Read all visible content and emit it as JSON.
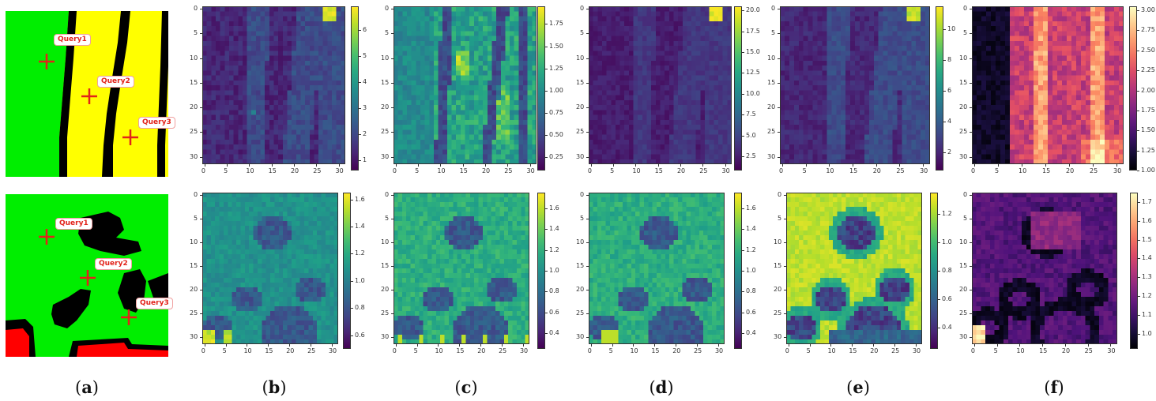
{
  "captions": [
    "a",
    "b",
    "c",
    "d",
    "e",
    "f"
  ],
  "query_labels": [
    "Query1",
    "Query2",
    "Query3"
  ],
  "colors": {
    "map_green": "#00ee00",
    "map_yellow": "#ffff00",
    "map_black": "#000000",
    "map_red": "#ff0000",
    "query_red": "#e2231a"
  },
  "chart_data": [
    {
      "type": "heatmap",
      "row": 1,
      "panel": "b",
      "colormap": "viridis",
      "xticks": [
        "0",
        "5",
        "10",
        "15",
        "20",
        "25",
        "30"
      ],
      "yticks": [
        "0",
        "5",
        "10",
        "15",
        "20",
        "25",
        "30"
      ],
      "colorbar_ticks": [
        "6",
        "5",
        "4",
        "3",
        "2",
        "1"
      ],
      "zlim": [
        0.6,
        6.9
      ]
    },
    {
      "type": "heatmap",
      "row": 1,
      "panel": "c",
      "colormap": "viridis",
      "xticks": [
        "0",
        "5",
        "10",
        "15",
        "20",
        "25",
        "30"
      ],
      "yticks": [
        "0",
        "5",
        "10",
        "15",
        "20",
        "25",
        "30"
      ],
      "colorbar_ticks": [
        "1.75",
        "1.50",
        "1.25",
        "1.00",
        "0.75",
        "0.50",
        "0.25"
      ],
      "zlim": [
        0.1,
        1.95
      ]
    },
    {
      "type": "heatmap",
      "row": 1,
      "panel": "d",
      "colormap": "viridis",
      "xticks": [
        "0",
        "5",
        "10",
        "15",
        "20",
        "25",
        "30"
      ],
      "yticks": [
        "0",
        "5",
        "10",
        "15",
        "20",
        "25",
        "30"
      ],
      "colorbar_ticks": [
        "20.0",
        "17.5",
        "15.0",
        "12.5",
        "10.0",
        "7.5",
        "5.0",
        "2.5"
      ],
      "zlim": [
        0.8,
        20.5
      ]
    },
    {
      "type": "heatmap",
      "row": 1,
      "panel": "e",
      "colormap": "viridis",
      "xticks": [
        "0",
        "5",
        "10",
        "15",
        "20",
        "25",
        "30"
      ],
      "yticks": [
        "0",
        "5",
        "10",
        "15",
        "20",
        "25",
        "30"
      ],
      "colorbar_ticks": [
        "10",
        "8",
        "6",
        "4",
        "2"
      ],
      "zlim": [
        0.8,
        11.5
      ]
    },
    {
      "type": "heatmap",
      "row": 1,
      "panel": "f",
      "colormap": "magma",
      "xticks": [
        "0",
        "5",
        "10",
        "15",
        "20",
        "25",
        "30"
      ],
      "yticks": [
        "0",
        "5",
        "10",
        "15",
        "20",
        "25",
        "30"
      ],
      "colorbar_ticks": [
        "3.00",
        "2.75",
        "2.50",
        "2.25",
        "2.00",
        "1.75",
        "1.50",
        "1.25",
        "1.00"
      ],
      "zlim": [
        1.0,
        3.05
      ]
    },
    {
      "type": "heatmap",
      "row": 2,
      "panel": "b",
      "colormap": "viridis",
      "xticks": [
        "0",
        "5",
        "10",
        "15",
        "20",
        "25",
        "30"
      ],
      "yticks": [
        "0",
        "5",
        "10",
        "15",
        "20",
        "25",
        "30"
      ],
      "colorbar_ticks": [
        "1.6",
        "1.4",
        "1.2",
        "1.0",
        "0.8",
        "0.6"
      ],
      "zlim": [
        0.5,
        1.65
      ]
    },
    {
      "type": "heatmap",
      "row": 2,
      "panel": "c",
      "colormap": "viridis",
      "xticks": [
        "0",
        "5",
        "10",
        "15",
        "20",
        "25",
        "30"
      ],
      "yticks": [
        "0",
        "5",
        "10",
        "15",
        "20",
        "25",
        "30"
      ],
      "colorbar_ticks": [
        "1.6",
        "1.4",
        "1.2",
        "1.0",
        "0.8",
        "0.6",
        "0.4"
      ],
      "zlim": [
        0.25,
        1.75
      ]
    },
    {
      "type": "heatmap",
      "row": 2,
      "panel": "d",
      "colormap": "viridis",
      "xticks": [
        "0",
        "5",
        "10",
        "15",
        "20",
        "25",
        "30"
      ],
      "yticks": [
        "0",
        "5",
        "10",
        "15",
        "20",
        "25",
        "30"
      ],
      "colorbar_ticks": [
        "1.6",
        "1.4",
        "1.2",
        "1.0",
        "0.8",
        "0.6",
        "0.4"
      ],
      "zlim": [
        0.25,
        1.75
      ]
    },
    {
      "type": "heatmap",
      "row": 2,
      "panel": "e",
      "colormap": "viridis",
      "xticks": [
        "0",
        "5",
        "10",
        "15",
        "20",
        "25",
        "30"
      ],
      "yticks": [
        "0",
        "5",
        "10",
        "15",
        "20",
        "25",
        "30"
      ],
      "colorbar_ticks": [
        "1.2",
        "1.0",
        "0.8",
        "0.6",
        "0.4"
      ],
      "zlim": [
        0.25,
        1.35
      ]
    },
    {
      "type": "heatmap",
      "row": 2,
      "panel": "f",
      "colormap": "magma",
      "xticks": [
        "0",
        "5",
        "10",
        "15",
        "20",
        "25",
        "30"
      ],
      "yticks": [
        "0",
        "5",
        "10",
        "15",
        "20",
        "25",
        "30"
      ],
      "colorbar_ticks": [
        "1.7",
        "1.6",
        "1.5",
        "1.4",
        "1.3",
        "1.2",
        "1.1",
        "1.0"
      ],
      "zlim": [
        0.92,
        1.75
      ]
    }
  ]
}
